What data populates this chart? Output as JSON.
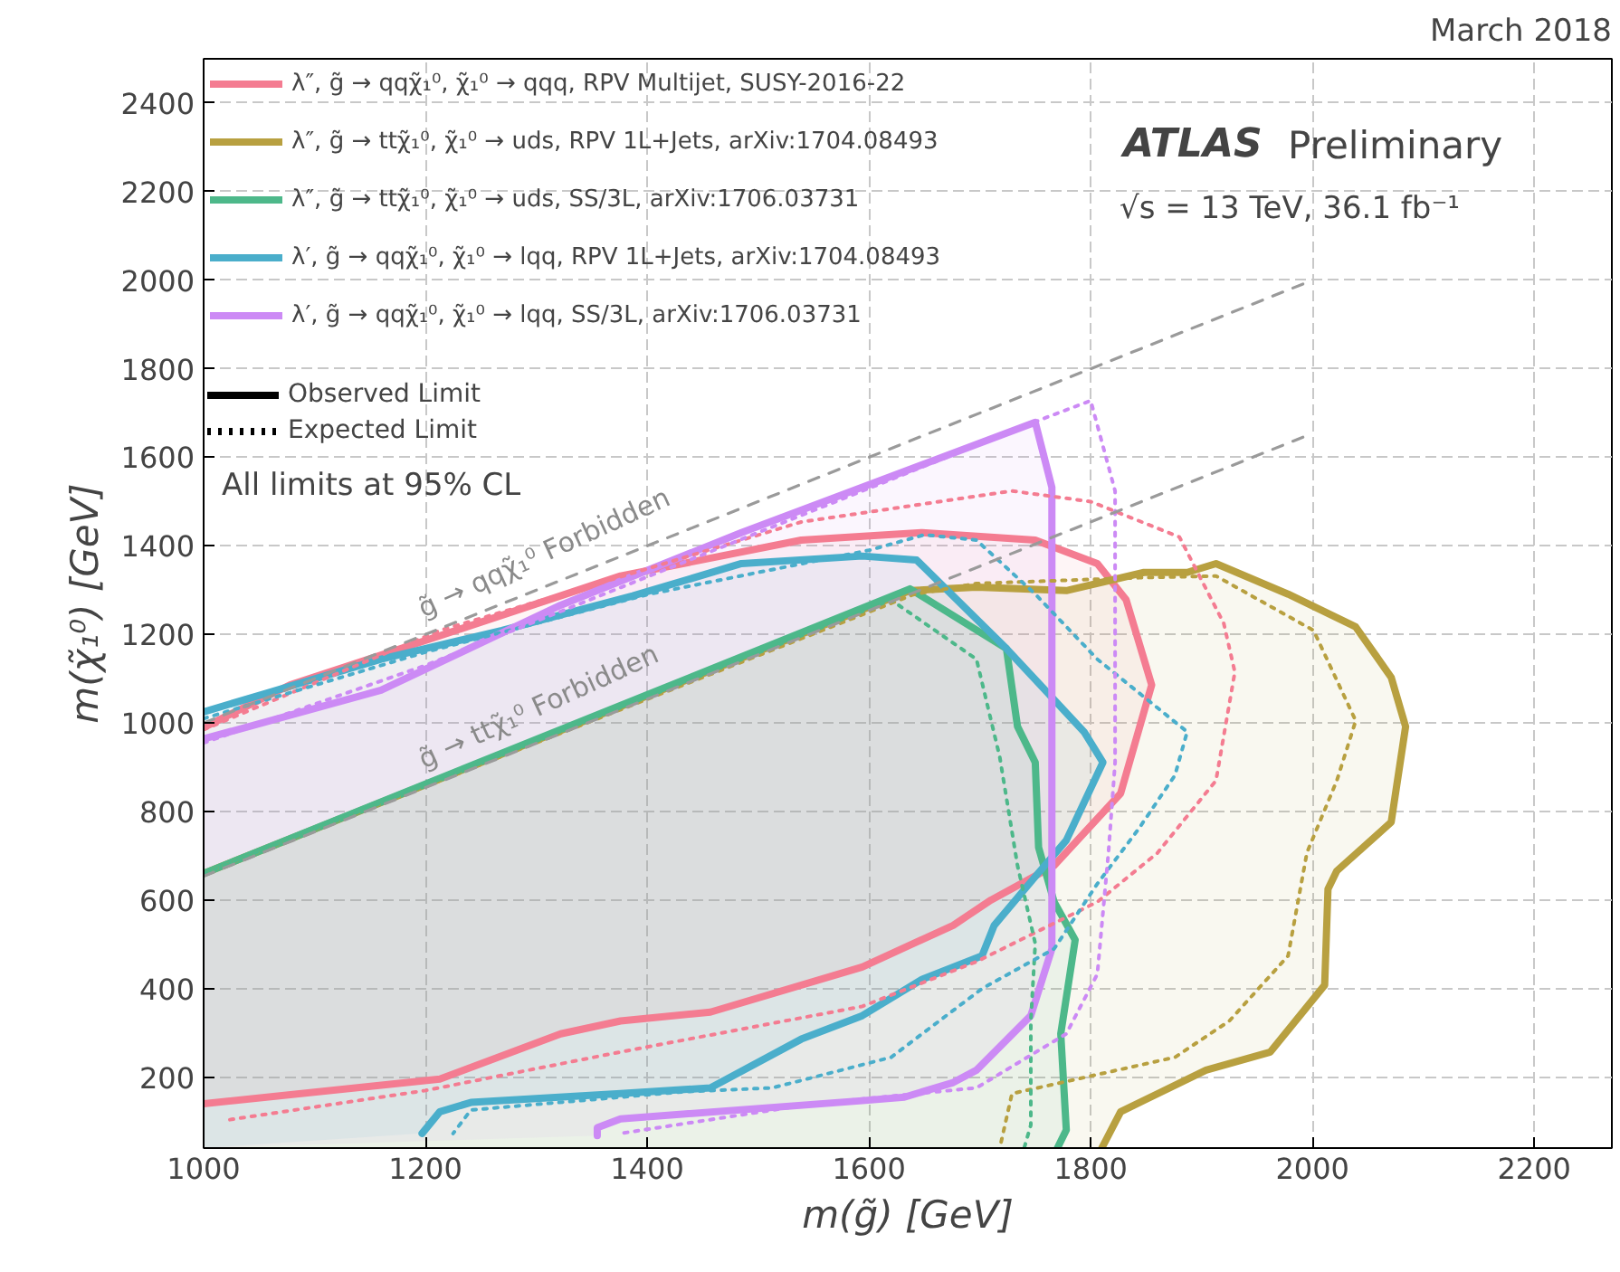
{
  "chart_data": {
    "type": "line",
    "xlabel": "m(g̃) [GeV]",
    "ylabel": "m(χ̃₁⁰) [GeV]",
    "xlim": [
      1000,
      2270
    ],
    "ylim": [
      40,
      2500
    ],
    "xticks": [
      1000,
      1200,
      1400,
      1600,
      1800,
      2000,
      2200
    ],
    "yticks": [
      200,
      400,
      600,
      800,
      1000,
      1200,
      1400,
      1600,
      1800,
      2000,
      2200,
      2400
    ],
    "grid": true,
    "legend": "top left",
    "title": "March 2018",
    "annotations": [
      "Observed Limit",
      "Expected Limit",
      "ATLAS",
      "Preliminary",
      "√s = 13 TeV, 36.1 fb⁻¹",
      "All limits at 95% CL",
      "g̃ → qqχ̃₁⁰ Forbidden",
      "g̃ → ttχ̃₁⁰ Forbidden"
    ],
    "series": [
      {
        "name": "λ″, g̃ → qqχ̃₁⁰, χ̃₁⁰ → qqq, RPV Multijet, SUSY-2016-22",
        "color": "#f47c91",
        "line_style": "solid",
        "type": "area",
        "x": [
          1000,
          1078,
          1213,
          1376,
          1539,
          1648,
          1750,
          1806,
          1832,
          1855,
          1827,
          1767,
          1710,
          1676,
          1594,
          1457,
          1376,
          1322,
          1213,
          1000
        ],
        "values": [
          990,
          1086,
          1197,
          1332,
          1413,
          1430,
          1413,
          1360,
          1278,
          1086,
          841,
          678,
          600,
          543,
          449,
          347,
          327,
          298,
          196,
          140
        ]
      },
      {
        "name": "λ″, g̃ → ttχ̃₁⁰, χ̃₁⁰ → uds, RPV 1L+Jets, arXiv:1704.08493",
        "color": "#b8a040",
        "line_style": "solid",
        "type": "area",
        "x": [
          1000,
          1637,
          1697,
          1778,
          1848,
          1887,
          1913,
          1978,
          2039,
          2071,
          2084,
          2071,
          2022,
          2014,
          2011,
          1962,
          1904,
          1827,
          1810
        ],
        "values": [
          660,
          1299,
          1307,
          1299,
          1340,
          1340,
          1360,
          1291,
          1217,
          1103,
          992,
          776,
          666,
          625,
          408,
          257,
          216,
          122,
          40
        ]
      },
      {
        "name": "λ″, g̃ → ttχ̃₁⁰, χ̃₁⁰ → uds, SS/3L, arXiv:1706.03731",
        "color": "#4db88a",
        "line_style": "solid",
        "type": "area",
        "x": [
          1000,
          1637,
          1724,
          1734,
          1750,
          1753,
          1767,
          1786,
          1773,
          1778,
          1770
        ],
        "values": [
          660,
          1303,
          1168,
          992,
          911,
          719,
          596,
          510,
          298,
          81,
          40
        ]
      },
      {
        "name": "λ′, g̃ → qqχ̃₁⁰, χ̃₁⁰ → lqq, RPV 1L+Jets, arXiv:1704.08493",
        "color": "#4aaecb",
        "line_style": "solid",
        "type": "area",
        "x": [
          1000,
          1160,
          1269,
          1387,
          1485,
          1594,
          1643,
          1724,
          1794,
          1811,
          1778,
          1750,
          1713,
          1702,
          1648,
          1594,
          1539,
          1457,
          1376,
          1241,
          1213,
          1197
        ],
        "values": [
          1025,
          1144,
          1209,
          1287,
          1360,
          1377,
          1368,
          1168,
          980,
          911,
          735,
          653,
          543,
          474,
          421,
          339,
          286,
          176,
          163,
          143,
          122,
          73
        ]
      },
      {
        "name": "λ′, g̃ → qqχ̃₁⁰, χ̃₁⁰ → lqq, SS/3L, arXiv:1706.03731",
        "color": "#cc8af5",
        "line_style": "solid",
        "type": "area",
        "x": [
          1000,
          1160,
          1322,
          1485,
          1750,
          1765,
          1765,
          1746,
          1697,
          1676,
          1632,
          1594,
          1376,
          1355,
          1355
        ],
        "values": [
          964,
          1074,
          1266,
          1430,
          1679,
          1532,
          490,
          339,
          216,
          188,
          155,
          147,
          106,
          86,
          68
        ]
      },
      {
        "color": "#f47c91",
        "line_style": "dotted",
        "x": [
          1000,
          1213,
          1376,
          1539,
          1729,
          1800,
          1880,
          1920,
          1930,
          1913,
          1860,
          1806,
          1697,
          1594,
          1376,
          1200,
          1018
        ],
        "values": [
          985,
          1209,
          1330,
          1454,
          1524,
          1500,
          1420,
          1225,
          1115,
          870,
          706,
          596,
          461,
          360,
          257,
          170,
          102
        ]
      },
      {
        "color": "#b8a040",
        "line_style": "dotted",
        "x": [
          1000,
          1640,
          1697,
          1843,
          1913,
          2001,
          2039,
          2022,
          1995,
          1978,
          1925,
          1876,
          1729,
          1718
        ],
        "values": [
          660,
          1290,
          1315,
          1328,
          1332,
          1209,
          1005,
          870,
          707,
          474,
          327,
          245,
          163,
          40
        ]
      },
      {
        "color": "#4db88a",
        "line_style": "dotted",
        "x": [
          1000,
          1620,
          1697,
          1718,
          1734,
          1750,
          1746,
          1746,
          1740
        ],
        "values": [
          660,
          1278,
          1144,
          923,
          678,
          502,
          327,
          92,
          40
        ]
      },
      {
        "color": "#4aaecb",
        "line_style": "dotted",
        "x": [
          1000,
          1200,
          1400,
          1600,
          1650,
          1697,
          1750,
          1806,
          1887,
          1876,
          1843,
          1806,
          1767,
          1702,
          1620,
          1513,
          1432,
          1241,
          1225
        ],
        "values": [
          1010,
          1160,
          1290,
          1390,
          1425,
          1413,
          1291,
          1144,
          980,
          882,
          760,
          637,
          490,
          400,
          245,
          176,
          167,
          126,
          73
        ]
      },
      {
        "color": "#cc8af5",
        "line_style": "dotted",
        "x": [
          1000,
          1200,
          1400,
          1600,
          1760,
          1800,
          1822,
          1822,
          1816,
          1806,
          1778,
          1697,
          1550,
          1376
        ],
        "values": [
          955,
          1130,
          1330,
          1530,
          1690,
          1728,
          1524,
          911,
          707,
          433,
          298,
          176,
          140,
          73
        ]
      },
      {
        "color": "#9a9a9a",
        "line_style": "dashed",
        "x": [
          1000,
          2000
        ],
        "values": [
          1000,
          2000
        ]
      },
      {
        "color": "#9a9a9a",
        "line_style": "dashed",
        "x": [
          1000,
          2000
        ],
        "values": [
          654,
          1654
        ]
      }
    ]
  }
}
